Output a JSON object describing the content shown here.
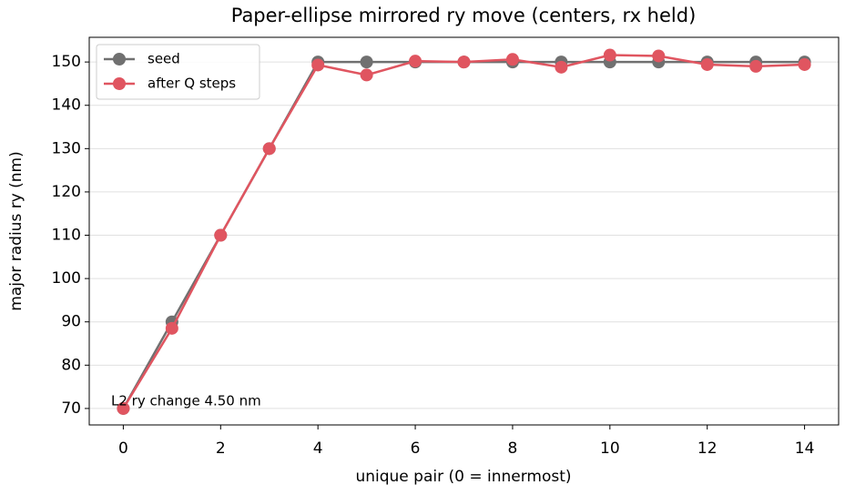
{
  "chart_data": {
    "type": "line",
    "title": "Paper-ellipse mirrored ry move (centers, rx held)",
    "xlabel": "unique pair (0 = innermost)",
    "ylabel": "major radius ry (nm)",
    "annotation": "L2 ry change 4.50 nm",
    "x": [
      0,
      1,
      2,
      3,
      4,
      5,
      6,
      7,
      8,
      9,
      10,
      11,
      12,
      13,
      14
    ],
    "series": [
      {
        "name": "seed",
        "color": "#707070",
        "values": [
          70,
          90,
          110,
          130,
          150,
          150,
          150,
          150,
          150,
          150,
          150,
          150,
          150,
          150,
          150
        ]
      },
      {
        "name": "after Q steps",
        "color": "#e05560",
        "values": [
          70,
          88.5,
          110,
          130,
          149.3,
          147,
          150.2,
          150,
          150.6,
          148.8,
          151.6,
          151.4,
          149.4,
          149.0,
          149.4
        ]
      }
    ],
    "xlim": [
      -0.7,
      14.7
    ],
    "xticks": [
      0,
      2,
      4,
      6,
      8,
      10,
      12,
      14
    ],
    "ylim": [
      66.2,
      155.7
    ],
    "yticks": [
      70,
      80,
      90,
      100,
      110,
      120,
      130,
      140,
      150
    ],
    "grid": true,
    "legend": "upper left"
  }
}
